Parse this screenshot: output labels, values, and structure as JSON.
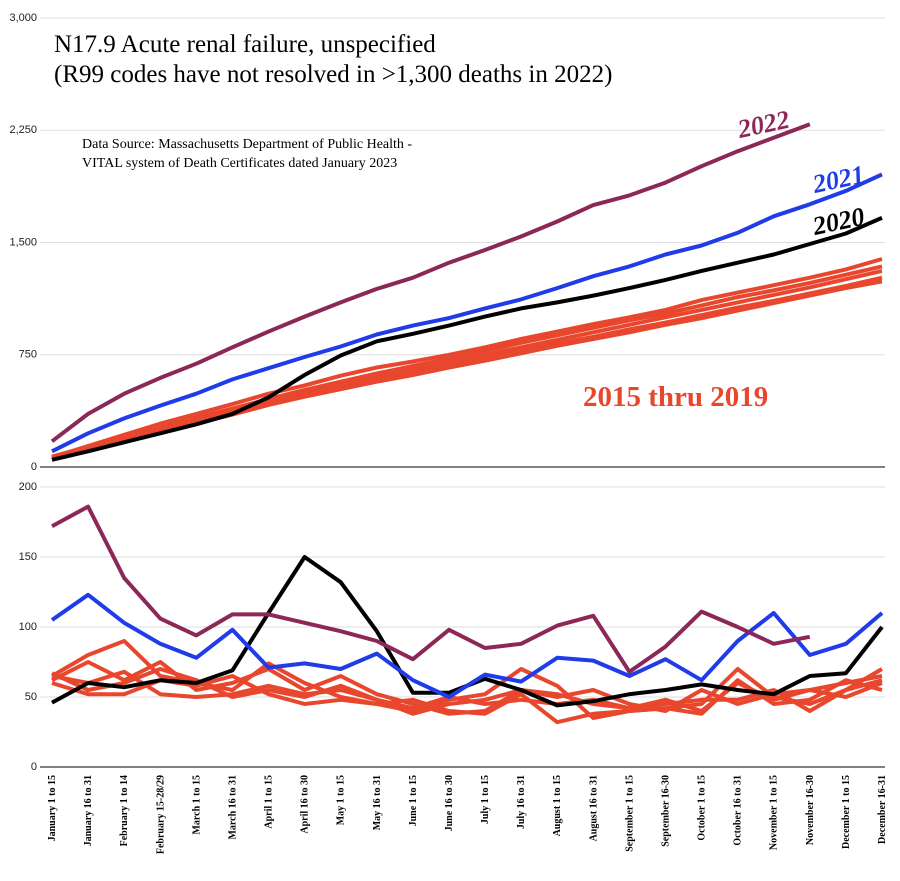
{
  "chart_data": [
    {
      "type": "line",
      "title": "N17.9 Acute renal failure, unspecified",
      "subtitle": "(R99 codes have not resolved in >1,300 deaths in 2022)",
      "source": [
        "Data Source:  Massachusetts Department of Public Health -",
        "VITAL system of Death Certificates dated January 2023"
      ],
      "ylim": [
        0,
        3000
      ],
      "yticks": [
        0,
        750,
        {
          "value": 1500,
          "label": "1,500"
        },
        {
          "value": 2250,
          "label": "2,250"
        },
        {
          "value": 3000,
          "label": "3,000"
        }
      ],
      "grid": true,
      "series": [
        {
          "name": "2022",
          "color": "#8c2857",
          "values": [
            172,
            355,
            490,
            595,
            690,
            800,
            905,
            1005,
            1100,
            1190,
            1265,
            1365,
            1450,
            1540,
            1640,
            1750,
            1815,
            1900,
            2010,
            2110,
            2200,
            2290,
            null,
            null
          ]
        },
        {
          "name": "2021",
          "color": "#1f3ce8",
          "values": [
            105,
            225,
            325,
            410,
            490,
            585,
            660,
            735,
            805,
            885,
            945,
            995,
            1060,
            1120,
            1195,
            1275,
            1340,
            1420,
            1480,
            1565,
            1675,
            1755,
            1845,
            1955
          ]
        },
        {
          "name": "2020",
          "color": "#000000",
          "values": [
            48,
            105,
            165,
            225,
            285,
            355,
            465,
            615,
            745,
            840,
            890,
            945,
            1005,
            1060,
            1100,
            1145,
            1195,
            1250,
            1310,
            1365,
            1420,
            1490,
            1560,
            1665
          ]
        }
      ],
      "series_group": {
        "name": "2015 thru 2019",
        "color": "#e8472e",
        "values": [
          [
            65,
            140,
            215,
            290,
            355,
            420,
            490,
            545,
            610,
            665,
            705,
            750,
            800,
            855,
            905,
            955,
            1000,
            1050,
            1115,
            1165,
            1215,
            1265,
            1320,
            1390
          ],
          [
            60,
            130,
            200,
            265,
            330,
            390,
            455,
            515,
            570,
            625,
            675,
            725,
            775,
            830,
            880,
            930,
            980,
            1025,
            1080,
            1135,
            1180,
            1230,
            1285,
            1340
          ],
          [
            55,
            120,
            185,
            250,
            315,
            375,
            440,
            495,
            550,
            600,
            650,
            700,
            750,
            800,
            850,
            900,
            950,
            1000,
            1050,
            1100,
            1150,
            1200,
            1255,
            1310
          ],
          [
            70,
            135,
            195,
            250,
            310,
            370,
            430,
            480,
            530,
            585,
            635,
            680,
            725,
            775,
            825,
            870,
            920,
            965,
            1015,
            1065,
            1110,
            1160,
            1210,
            1265
          ],
          [
            50,
            110,
            170,
            230,
            290,
            350,
            415,
            470,
            520,
            570,
            615,
            665,
            710,
            760,
            810,
            855,
            900,
            950,
            995,
            1045,
            1095,
            1145,
            1195,
            1240
          ]
        ]
      }
    },
    {
      "type": "line",
      "categories": [
        "January 1 to 15",
        "January 16 to 31",
        "February 1 to 14",
        "February 15-28/29",
        "March 1 to 15",
        "March 16 to 31",
        "April 1 to 15",
        "April 16 to 30",
        "May 1 to 15",
        "May 16 to 31",
        "June 1 to 15",
        "June 16 to 30",
        "July 1 to 15",
        "July 16 to 31",
        "August 1 to 15",
        "August 16 to 31",
        "September 1 to 15",
        "September 16-30",
        "October 1 to 15",
        "October 16 to 31",
        "November 1 to 15",
        "November 16-30",
        "December 1 to 15",
        "December 16-31"
      ],
      "ylim": [
        0,
        200
      ],
      "yticks": [
        0,
        50,
        100,
        150,
        200
      ],
      "grid": true,
      "series": [
        {
          "color": "#8c2857",
          "values": [
            172,
            186,
            135,
            106,
            94,
            109,
            109,
            103,
            97,
            90,
            77,
            98,
            85,
            88,
            101,
            108,
            68,
            86,
            111,
            100,
            88,
            93,
            null,
            null
          ]
        },
        {
          "color": "#1f3ce8",
          "values": [
            105,
            123,
            103,
            88,
            78,
            98,
            71,
            74,
            70,
            81,
            62,
            50,
            66,
            61,
            78,
            76,
            65,
            77,
            62,
            90,
            110,
            80,
            88,
            110
          ]
        },
        {
          "color": "#000000",
          "values": [
            46,
            60,
            57,
            62,
            60,
            69,
            110,
            150,
            132,
            97,
            53,
            53,
            63,
            55,
            44,
            47,
            52,
            55,
            59,
            55,
            52,
            65,
            67,
            100
          ]
        }
      ],
      "series_group": {
        "color": "#e8472e",
        "values": [
          [
            65,
            80,
            90,
            65,
            60,
            55,
            74,
            60,
            50,
            45,
            40,
            48,
            52,
            70,
            58,
            35,
            40,
            42,
            45,
            70,
            50,
            45,
            55,
            70
          ],
          [
            62,
            75,
            62,
            75,
            55,
            60,
            70,
            55,
            65,
            52,
            45,
            38,
            40,
            55,
            52,
            45,
            42,
            48,
            40,
            60,
            48,
            55,
            60,
            65
          ],
          [
            67,
            55,
            60,
            70,
            62,
            50,
            55,
            50,
            58,
            48,
            38,
            45,
            48,
            55,
            50,
            55,
            45,
            40,
            55,
            45,
            52,
            55,
            50,
            60
          ],
          [
            60,
            52,
            52,
            62,
            58,
            65,
            52,
            45,
            48,
            45,
            48,
            40,
            38,
            52,
            32,
            38,
            40,
            42,
            38,
            62,
            45,
            48,
            62,
            55
          ],
          [
            65,
            60,
            68,
            52,
            50,
            52,
            58,
            52,
            55,
            48,
            42,
            50,
            45,
            48,
            45,
            48,
            42,
            45,
            48,
            48,
            55,
            40,
            55,
            62
          ]
        ]
      }
    }
  ]
}
